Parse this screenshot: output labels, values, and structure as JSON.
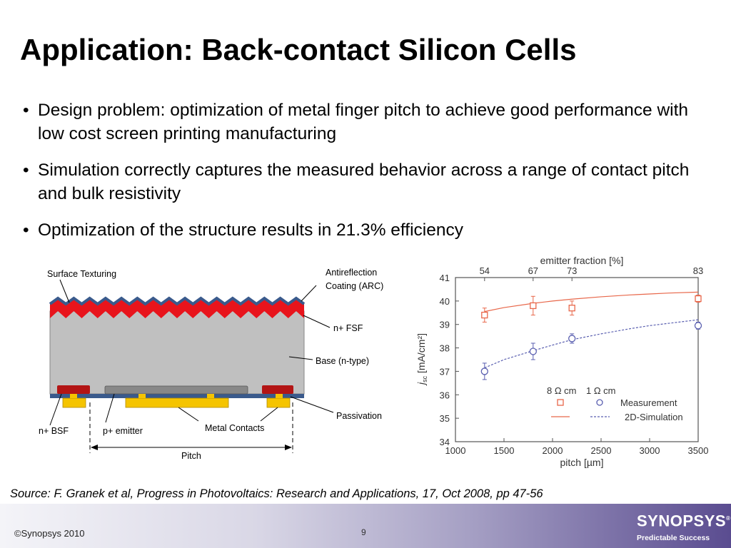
{
  "slide": {
    "title": "Application: Back-contact Silicon Cells",
    "bullet_symbol": "•",
    "bullets": [
      "Design problem: optimization of metal finger pitch to achieve good performance with low cost screen printing manufacturing",
      "Simulation correctly captures the measured behavior across a range of contact pitch and bulk resistivity",
      "Optimization of the structure results in 21.3% efficiency"
    ],
    "source": "Source: F. Granek et al, Progress in Photovoltaics: Research and Applications, 17, Oct 2008, pp 47-56"
  },
  "diagram": {
    "labels": {
      "surface_texturing": "Surface Texturing",
      "arc_line1": "Antireflection",
      "arc_line2": "Coating (ARC)",
      "fsf": "n+ FSF",
      "base": "Base (n-type)",
      "passivation": "Passivation",
      "metal_contacts": "Metal Contacts",
      "bsf": "n+ BSF",
      "emitter": "p+ emitter",
      "pitch": "Pitch"
    },
    "colors": {
      "base": "#c0c0c0",
      "texture_red": "#e8141c",
      "arc_blue": "#3a5a8c",
      "metal": "#f5c400",
      "bsf": "#b31515",
      "emitter": "#888888"
    }
  },
  "chart_data": {
    "type": "scatter",
    "title": "",
    "xlabel": "pitch [µm]",
    "ylabel": "jsc [mA/cm²]",
    "ylabel_main": "j",
    "ylabel_sub": "sc",
    "ylabel_unit": " [mA/cm²]",
    "xlim": [
      1000,
      3500
    ],
    "ylim": [
      34,
      41
    ],
    "xticks": [
      1000,
      1500,
      2000,
      2500,
      3000,
      3500
    ],
    "yticks": [
      34,
      35,
      36,
      37,
      38,
      39,
      40,
      41
    ],
    "top_axis": {
      "label": "emitter fraction [%]",
      "ticks": [
        {
          "x": 1300,
          "label": "54"
        },
        {
          "x": 1800,
          "label": "67"
        },
        {
          "x": 2200,
          "label": "73"
        },
        {
          "x": 3500,
          "label": "83"
        }
      ]
    },
    "series": [
      {
        "name": "8 Ω cm",
        "kind": "measurement",
        "marker": "square",
        "color": "#e8674a",
        "x": [
          1300,
          1800,
          2200,
          3500
        ],
        "y": [
          39.4,
          39.8,
          39.7,
          40.1
        ],
        "err": [
          0.3,
          0.4,
          0.3,
          0.15
        ]
      },
      {
        "name": "1 Ω cm",
        "kind": "measurement",
        "marker": "circle",
        "color": "#5a5fb0",
        "x": [
          1300,
          1800,
          2200,
          3500
        ],
        "y": [
          37.0,
          37.85,
          38.4,
          38.95
        ],
        "err": [
          0.35,
          0.35,
          0.2,
          0.15
        ]
      },
      {
        "name": "8 Ω cm",
        "kind": "simulation",
        "line": "solid",
        "color": "#e8674a",
        "x": [
          1300,
          1500,
          1800,
          2000,
          2200,
          2500,
          2800,
          3000,
          3200,
          3500
        ],
        "y": [
          39.55,
          39.72,
          39.9,
          40.0,
          40.08,
          40.18,
          40.26,
          40.3,
          40.34,
          40.38
        ]
      },
      {
        "name": "1 Ω cm",
        "kind": "simulation",
        "line": "dashed",
        "color": "#5a5fb0",
        "x": [
          1300,
          1500,
          1800,
          2000,
          2200,
          2500,
          2800,
          3000,
          3200,
          3500
        ],
        "y": [
          37.15,
          37.5,
          37.88,
          38.12,
          38.35,
          38.6,
          38.82,
          38.95,
          39.05,
          39.2
        ]
      }
    ],
    "legend": {
      "header": [
        "8 Ω cm",
        "1 Ω cm"
      ],
      "rows": [
        "Measurement",
        "2D-Simulation"
      ],
      "placement": "bottom-right"
    }
  },
  "footer": {
    "copyright": "©Synopsys 2010",
    "page_number": "9",
    "logo_text": "SYNOPSYS",
    "logo_mark": "®",
    "tagline": "Predictable Success"
  }
}
